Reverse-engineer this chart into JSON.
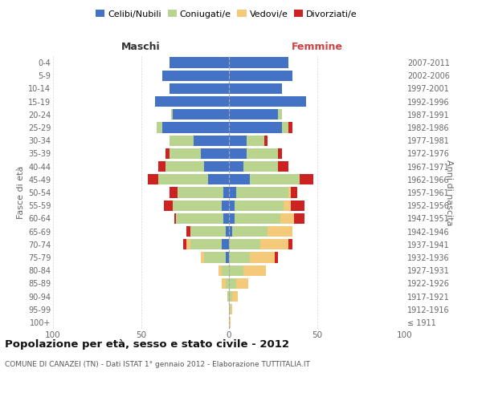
{
  "age_groups": [
    "100+",
    "95-99",
    "90-94",
    "85-89",
    "80-84",
    "75-79",
    "70-74",
    "65-69",
    "60-64",
    "55-59",
    "50-54",
    "45-49",
    "40-44",
    "35-39",
    "30-34",
    "25-29",
    "20-24",
    "15-19",
    "10-14",
    "5-9",
    "0-4"
  ],
  "birth_years": [
    "≤ 1911",
    "1912-1916",
    "1917-1921",
    "1922-1926",
    "1927-1931",
    "1932-1936",
    "1937-1941",
    "1942-1946",
    "1947-1951",
    "1952-1956",
    "1957-1961",
    "1962-1966",
    "1967-1971",
    "1972-1976",
    "1977-1981",
    "1982-1986",
    "1987-1991",
    "1992-1996",
    "1997-2001",
    "2002-2006",
    "2007-2011"
  ],
  "males_celibe": [
    0,
    0,
    0,
    0,
    0,
    2,
    4,
    2,
    3,
    4,
    3,
    12,
    14,
    16,
    20,
    38,
    32,
    42,
    34,
    38,
    34
  ],
  "males_coniugato": [
    0,
    0,
    1,
    2,
    4,
    12,
    18,
    20,
    27,
    28,
    26,
    28,
    22,
    18,
    14,
    3,
    1,
    0,
    0,
    0,
    0
  ],
  "males_vedovo": [
    0,
    0,
    0,
    2,
    2,
    2,
    2,
    0,
    0,
    0,
    0,
    0,
    0,
    0,
    0,
    0,
    0,
    0,
    0,
    0,
    0
  ],
  "males_divorziato": [
    0,
    0,
    0,
    0,
    0,
    0,
    2,
    2,
    1,
    5,
    5,
    6,
    4,
    2,
    0,
    0,
    0,
    0,
    0,
    0,
    0
  ],
  "females_nubile": [
    0,
    0,
    0,
    0,
    0,
    0,
    0,
    2,
    3,
    3,
    4,
    12,
    8,
    10,
    10,
    30,
    28,
    44,
    30,
    36,
    34
  ],
  "females_coniugata": [
    0,
    1,
    2,
    4,
    8,
    12,
    18,
    20,
    26,
    28,
    30,
    28,
    20,
    18,
    10,
    4,
    2,
    0,
    0,
    0,
    0
  ],
  "females_vedova": [
    1,
    1,
    3,
    7,
    13,
    14,
    16,
    14,
    8,
    4,
    1,
    0,
    0,
    0,
    0,
    0,
    0,
    0,
    0,
    0,
    0
  ],
  "females_divorziata": [
    0,
    0,
    0,
    0,
    0,
    2,
    2,
    0,
    6,
    8,
    4,
    8,
    6,
    2,
    2,
    2,
    0,
    0,
    0,
    0,
    0
  ],
  "color_celibe": "#4472c4",
  "color_coniugato": "#b8d48e",
  "color_vedovo": "#f5c97a",
  "color_divorziato": "#cc2222",
  "xlim": 100,
  "title": "Popolazione per età, sesso e stato civile - 2012",
  "subtitle": "COMUNE DI CANAZEI (TN) - Dati ISTAT 1° gennaio 2012 - Elaborazione TUTTITALIA.IT",
  "bg_color": "#ffffff"
}
